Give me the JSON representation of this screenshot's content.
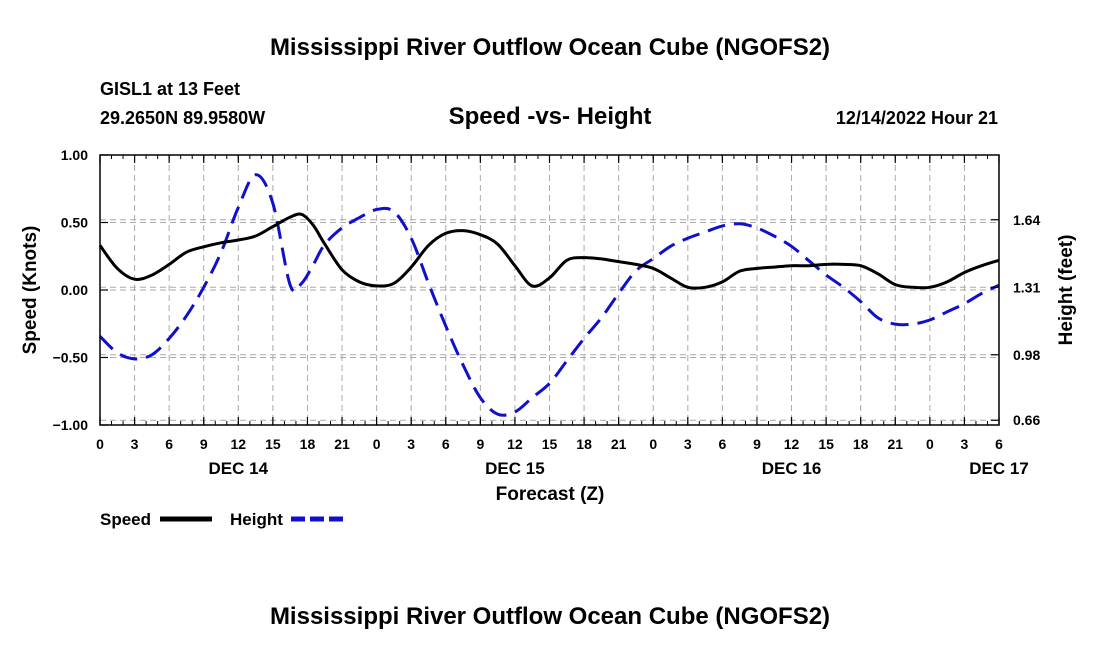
{
  "page": {
    "title": "Mississippi River Outflow Ocean Cube (NGOFS2)",
    "footer_title": "Mississippi River Outflow Ocean Cube (NGOFS2)"
  },
  "station": {
    "name": "GISL1 at 13 Feet",
    "coords": "29.2650N  89.9580W"
  },
  "run": {
    "timestamp": "12/14/2022 Hour 21"
  },
  "chart_data": {
    "type": "line",
    "title": "Speed -vs- Height",
    "xlabel": "Forecast (Z)",
    "ylabel_left": "Speed (Knots)",
    "ylabel_right": "Height (feet)",
    "x_unit": "hours since 2022-12-14 00Z",
    "xlim": [
      0,
      78
    ],
    "x_ticks": [
      0,
      3,
      6,
      9,
      12,
      15,
      18,
      21,
      24,
      27,
      30,
      33,
      36,
      39,
      42,
      45,
      48,
      51,
      54,
      57,
      60,
      63,
      66,
      69,
      72,
      75,
      78
    ],
    "x_tick_labels": [
      "0",
      "3",
      "6",
      "9",
      "12",
      "15",
      "18",
      "21",
      "0",
      "3",
      "6",
      "9",
      "12",
      "15",
      "18",
      "21",
      "0",
      "3",
      "6",
      "9",
      "12",
      "15",
      "18",
      "21",
      "0",
      "3",
      "6"
    ],
    "date_labels": [
      {
        "label": "DEC 14",
        "x": 12
      },
      {
        "label": "DEC 15",
        "x": 36
      },
      {
        "label": "DEC 16",
        "x": 60
      },
      {
        "label": "DEC 17",
        "x": 78
      }
    ],
    "ylim_left": [
      -1.0,
      1.0
    ],
    "yticks_left": [
      -1.0,
      -0.5,
      0.0,
      0.5,
      1.0
    ],
    "yticks_left_labels": [
      "−1.00",
      "−0.50",
      "0.00",
      "0.50",
      "1.00"
    ],
    "ylim_right": [
      0.6366,
      1.9566
    ],
    "yticks_right": [
      0.66,
      0.98,
      1.31,
      1.64
    ],
    "yticks_right_labels": [
      "0.66",
      "0.98",
      "1.31",
      "1.64"
    ],
    "grid": true,
    "series": [
      {
        "name": "Speed",
        "axis": "left",
        "color": "#000000",
        "style": "solid",
        "x": [
          0,
          1.5,
          3,
          4.5,
          6,
          7.5,
          9,
          10.5,
          12,
          13.5,
          15,
          16.5,
          17.5,
          18.5,
          19.5,
          21,
          22.5,
          24,
          25.5,
          27,
          28.5,
          30,
          31.5,
          33,
          34.5,
          36,
          37.5,
          39,
          40.5,
          42,
          43.5,
          45,
          46.5,
          48,
          49.5,
          51,
          52.5,
          54,
          55.5,
          57,
          58.5,
          60,
          61.5,
          63,
          64.5,
          66,
          67.5,
          69,
          70.5,
          72,
          73.5,
          75,
          76.5,
          78
        ],
        "values": [
          0.33,
          0.16,
          0.08,
          0.11,
          0.19,
          0.28,
          0.32,
          0.35,
          0.37,
          0.4,
          0.47,
          0.54,
          0.56,
          0.48,
          0.34,
          0.15,
          0.06,
          0.03,
          0.05,
          0.17,
          0.33,
          0.42,
          0.44,
          0.41,
          0.34,
          0.18,
          0.03,
          0.09,
          0.22,
          0.24,
          0.23,
          0.21,
          0.19,
          0.16,
          0.09,
          0.02,
          0.02,
          0.06,
          0.14,
          0.16,
          0.17,
          0.18,
          0.18,
          0.19,
          0.19,
          0.18,
          0.12,
          0.04,
          0.02,
          0.02,
          0.06,
          0.13,
          0.18,
          0.22
        ]
      },
      {
        "name": "Height",
        "axis": "right",
        "color": "#1010cc",
        "style": "dashed",
        "x": [
          0,
          1.5,
          3,
          4.5,
          6,
          7.5,
          9,
          10.5,
          12,
          13.5,
          15,
          16.5,
          17.5,
          18.5,
          19.5,
          21,
          22.5,
          24,
          25.5,
          27,
          28.5,
          30,
          31.5,
          33,
          34.5,
          36,
          37.5,
          39,
          40.5,
          42,
          43.5,
          45,
          46.5,
          48,
          49.5,
          51,
          52.5,
          54,
          55.5,
          57,
          58.5,
          60,
          61.5,
          63,
          64.5,
          66,
          67.5,
          69,
          70.5,
          72,
          73.5,
          75,
          76.5,
          78
        ],
        "values": [
          1.07,
          0.99,
          0.96,
          0.98,
          1.06,
          1.17,
          1.31,
          1.48,
          1.7,
          1.86,
          1.72,
          1.32,
          1.33,
          1.42,
          1.52,
          1.6,
          1.65,
          1.69,
          1.68,
          1.55,
          1.33,
          1.12,
          0.93,
          0.77,
          0.69,
          0.7,
          0.77,
          0.84,
          0.95,
          1.06,
          1.16,
          1.28,
          1.39,
          1.45,
          1.51,
          1.55,
          1.58,
          1.61,
          1.62,
          1.6,
          1.56,
          1.51,
          1.44,
          1.37,
          1.31,
          1.24,
          1.16,
          1.13,
          1.13,
          1.15,
          1.19,
          1.23,
          1.28,
          1.32
        ]
      }
    ],
    "legend": [
      {
        "label": "Speed",
        "color": "#000000",
        "style": "solid"
      },
      {
        "label": "Height",
        "color": "#1010cc",
        "style": "dashed"
      }
    ]
  }
}
